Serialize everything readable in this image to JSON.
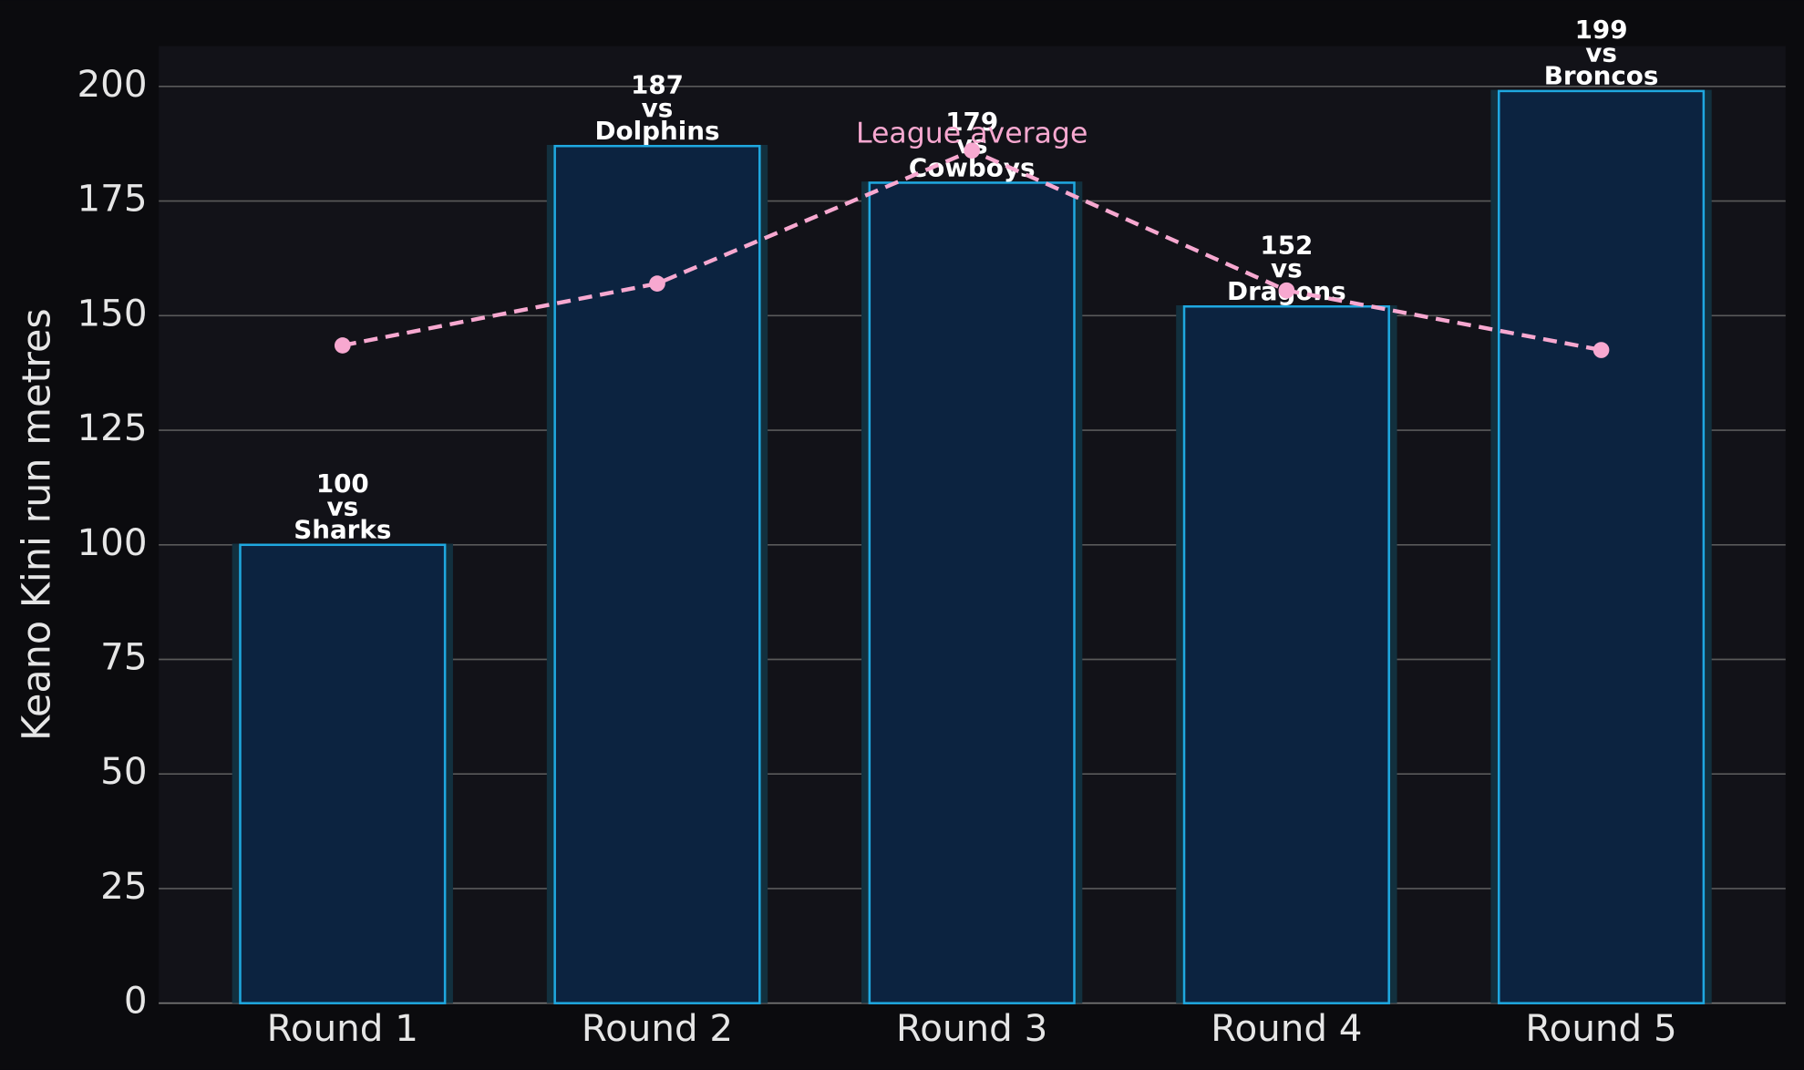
{
  "chart_data": {
    "type": "bar",
    "y_label": "Keano Kini run metres",
    "categories": [
      "Round 1",
      "Round 2",
      "Round 3",
      "Round 4",
      "Round 5"
    ],
    "series": [
      {
        "name": "Keano Kini",
        "type": "bar",
        "color": "#1fa8e0",
        "values": [
          100,
          187,
          179,
          152,
          199
        ],
        "value_labels": [
          "100\nvs\nSharks",
          "187\nvs\nDolphins",
          "179\nvs\nCowboys",
          "152\nvs\nDragons",
          "199\nvs\nBroncos"
        ]
      },
      {
        "name": "League average",
        "type": "line",
        "color": "#f7a8d0",
        "values": [
          143.5,
          157,
          186,
          155.5,
          142.5
        ]
      }
    ],
    "ylim": [
      0,
      208.8
    ],
    "yticks": [
      0,
      25,
      50,
      75,
      100,
      125,
      150,
      175,
      200
    ],
    "grid": true
  }
}
